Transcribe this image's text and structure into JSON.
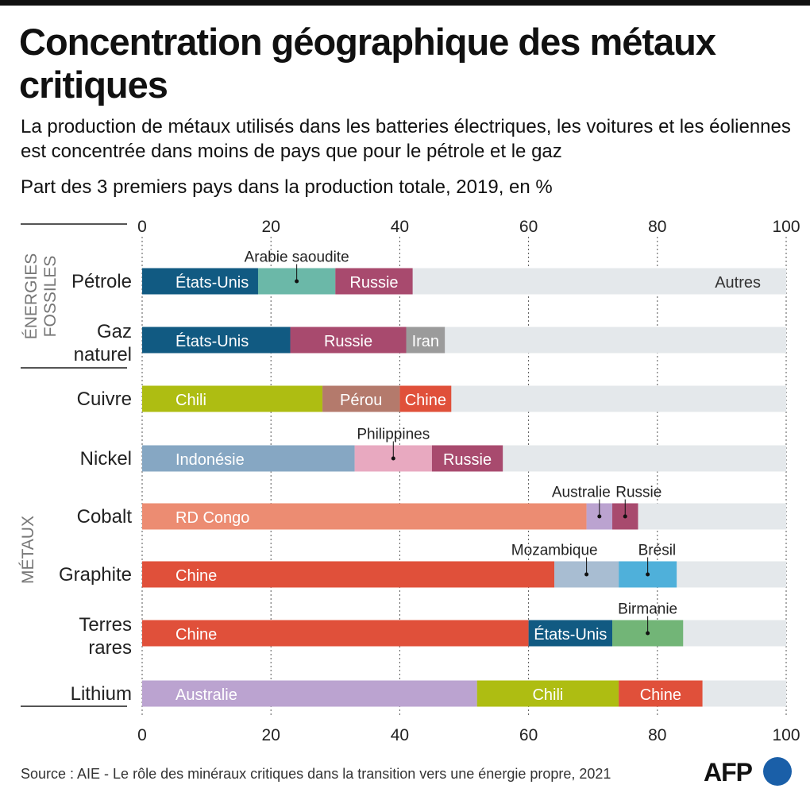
{
  "title": "Concentration géographique des métaux critiques",
  "subtitle": "La production de métaux utilisés dans les batteries électriques, les voitures et les éoliennes est concentrée dans moins de pays que pour le pétrole et le gaz",
  "unit_note": "Part des 3 premiers pays dans la production totale, 2019, en %",
  "source": "Source : AIE - Le rôle des minéraux critiques dans la transition vers une énergie propre, 2021",
  "logo": "AFP",
  "chart_data": {
    "type": "bar",
    "orientation": "horizontal",
    "stacked": true,
    "xlim": [
      0,
      100
    ],
    "xticks": [
      0,
      20,
      40,
      60,
      80,
      100
    ],
    "grid": "vertical dotted",
    "groups": [
      {
        "label": "ÉNERGIES FOSSILES",
        "rows": [
          "Pétrole",
          "Gaz naturel"
        ]
      },
      {
        "label": "MÉTAUX",
        "rows": [
          "Cuivre",
          "Nickel",
          "Cobalt",
          "Graphite",
          "Terres rares",
          "Lithium"
        ]
      }
    ],
    "rest_color": "#e4e8eb",
    "rows": [
      {
        "label": "Pétrole",
        "rest_label": "Autres",
        "segments": [
          {
            "country": "États-Unis",
            "value": 18,
            "color": "#115a82",
            "label_pos": "inside"
          },
          {
            "country": "Arabie saoudite",
            "value": 12,
            "color": "#6bb8a8",
            "label_pos": "above"
          },
          {
            "country": "Russie",
            "value": 12,
            "color": "#a84a6e",
            "label_pos": "inside"
          }
        ]
      },
      {
        "label": "Gaz naturel",
        "segments": [
          {
            "country": "États-Unis",
            "value": 23,
            "color": "#115a82",
            "label_pos": "inside"
          },
          {
            "country": "Russie",
            "value": 18,
            "color": "#a84a6e",
            "label_pos": "inside"
          },
          {
            "country": "Iran",
            "value": 6,
            "color": "#9b9b9b",
            "label_pos": "inside"
          }
        ]
      },
      {
        "label": "Cuivre",
        "segments": [
          {
            "country": "Chili",
            "value": 28,
            "color": "#aebd12",
            "label_pos": "inside"
          },
          {
            "country": "Pérou",
            "value": 12,
            "color": "#b47a6c",
            "label_pos": "inside"
          },
          {
            "country": "Chine",
            "value": 8,
            "color": "#e0503a",
            "label_pos": "inside"
          }
        ]
      },
      {
        "label": "Nickel",
        "segments": [
          {
            "country": "Indonésie",
            "value": 33,
            "color": "#86a7c3",
            "label_pos": "inside"
          },
          {
            "country": "Philippines",
            "value": 12,
            "color": "#e8a9c0",
            "label_pos": "above"
          },
          {
            "country": "Russie",
            "value": 11,
            "color": "#a84a6e",
            "label_pos": "inside"
          }
        ]
      },
      {
        "label": "Cobalt",
        "segments": [
          {
            "country": "RD Congo",
            "value": 69,
            "color": "#ec8c72",
            "label_pos": "inside"
          },
          {
            "country": "Australie",
            "value": 4,
            "color": "#bba3d0",
            "label_pos": "above"
          },
          {
            "country": "Russie",
            "value": 4,
            "color": "#a84a6e",
            "label_pos": "above"
          }
        ]
      },
      {
        "label": "Graphite",
        "segments": [
          {
            "country": "Chine",
            "value": 64,
            "color": "#e0503a",
            "label_pos": "inside"
          },
          {
            "country": "Mozambique",
            "value": 10,
            "color": "#a8bdd2",
            "label_pos": "above"
          },
          {
            "country": "Brésil",
            "value": 9,
            "color": "#4fb0da",
            "label_pos": "above"
          }
        ]
      },
      {
        "label": "Terres rares",
        "segments": [
          {
            "country": "Chine",
            "value": 60,
            "color": "#e0503a",
            "label_pos": "inside"
          },
          {
            "country": "États-Unis",
            "value": 13,
            "color": "#115a82",
            "label_pos": "inside"
          },
          {
            "country": "Birmanie",
            "value": 11,
            "color": "#72b577",
            "label_pos": "above"
          }
        ]
      },
      {
        "label": "Lithium",
        "segments": [
          {
            "country": "Australie",
            "value": 52,
            "color": "#bba3d0",
            "label_pos": "inside"
          },
          {
            "country": "Chili",
            "value": 22,
            "color": "#aebd12",
            "label_pos": "inside"
          },
          {
            "country": "Chine",
            "value": 13,
            "color": "#e0503a",
            "label_pos": "inside"
          }
        ]
      }
    ]
  }
}
